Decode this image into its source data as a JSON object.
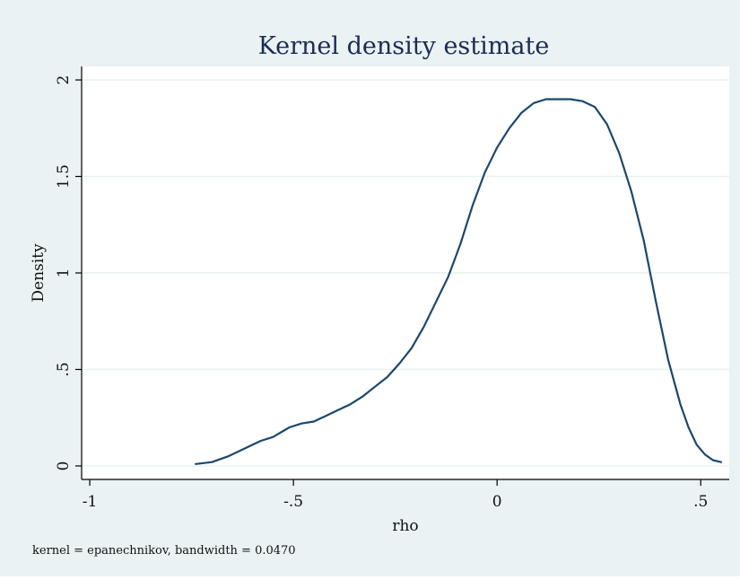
{
  "colors": {
    "outer_background": "#eaf2f3",
    "plot_background": "#ffffff",
    "grid": "#eaf2f3",
    "line": "#1a476f",
    "title": "#1a2c55",
    "axis": "#000000"
  },
  "chart_data": {
    "type": "line",
    "title": "Kernel density estimate",
    "xlabel": "rho",
    "ylabel": "Density",
    "note": "kernel = epanechnikov, bandwidth = 0.0470",
    "xlim": [
      -1.02,
      0.57
    ],
    "ylim": [
      -0.07,
      2.07
    ],
    "grid": true,
    "x_ticks": [
      {
        "value": -1,
        "label": "-1"
      },
      {
        "value": -0.5,
        "label": "-.5"
      },
      {
        "value": 0,
        "label": "0"
      },
      {
        "value": 0.5,
        "label": ".5"
      }
    ],
    "y_ticks": [
      {
        "value": 0,
        "label": "0"
      },
      {
        "value": 0.5,
        "label": ".5"
      },
      {
        "value": 1,
        "label": "1"
      },
      {
        "value": 1.5,
        "label": "1.5"
      },
      {
        "value": 2,
        "label": "2"
      }
    ],
    "series": [
      {
        "x": [
          -0.74,
          -0.7,
          -0.66,
          -0.62,
          -0.58,
          -0.55,
          -0.51,
          -0.48,
          -0.45,
          -0.42,
          -0.39,
          -0.36,
          -0.33,
          -0.3,
          -0.27,
          -0.24,
          -0.21,
          -0.18,
          -0.15,
          -0.12,
          -0.09,
          -0.06,
          -0.03,
          0.0,
          0.03,
          0.06,
          0.09,
          0.12,
          0.15,
          0.18,
          0.21,
          0.24,
          0.27,
          0.3,
          0.33,
          0.36,
          0.39,
          0.42,
          0.45,
          0.47,
          0.49,
          0.51,
          0.53,
          0.55
        ],
        "y": [
          0.01,
          0.02,
          0.05,
          0.09,
          0.13,
          0.15,
          0.2,
          0.22,
          0.23,
          0.26,
          0.29,
          0.32,
          0.36,
          0.41,
          0.46,
          0.53,
          0.61,
          0.72,
          0.85,
          0.98,
          1.15,
          1.35,
          1.52,
          1.65,
          1.75,
          1.83,
          1.88,
          1.9,
          1.9,
          1.9,
          1.89,
          1.86,
          1.77,
          1.62,
          1.42,
          1.17,
          0.85,
          0.55,
          0.32,
          0.2,
          0.11,
          0.06,
          0.03,
          0.02
        ]
      }
    ]
  }
}
